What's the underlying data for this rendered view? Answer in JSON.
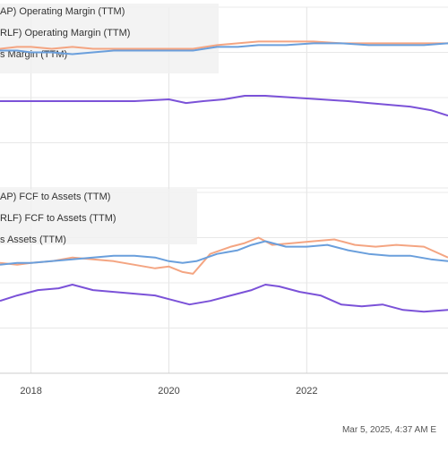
{
  "chart_data": {
    "type": "line",
    "xlim": [
      2017.55,
      2024.05
    ],
    "x_ticks": [
      {
        "value": 2018,
        "label": "2018"
      },
      {
        "value": 2020,
        "label": "2020"
      },
      {
        "value": 2022,
        "label": "2022"
      }
    ],
    "footer_text": "Mar 5, 2025, 4:37 AM E",
    "panels": [
      {
        "name": "top",
        "ylim": [
          0,
          1
        ],
        "legend": [
          {
            "text": "AP) Operating Margin (TTM)",
            "color": "#f4a582"
          },
          {
            "text": "RLF) Operating Margin (TTM)",
            "color": "#6a9fdc"
          },
          {
            "text": "s Margin (TTM)",
            "color": "#7b52d8"
          }
        ],
        "series": [
          {
            "color": "#f4a582",
            "points": [
              [
                2017.55,
                0.77
              ],
              [
                2017.8,
                0.78
              ],
              [
                2018.0,
                0.78
              ],
              [
                2018.3,
                0.77
              ],
              [
                2018.6,
                0.78
              ],
              [
                2018.9,
                0.77
              ],
              [
                2019.2,
                0.77
              ],
              [
                2019.6,
                0.77
              ],
              [
                2020.0,
                0.77
              ],
              [
                2020.35,
                0.77
              ],
              [
                2020.7,
                0.79
              ],
              [
                2021.0,
                0.8
              ],
              [
                2021.3,
                0.81
              ],
              [
                2021.7,
                0.81
              ],
              [
                2022.1,
                0.81
              ],
              [
                2022.5,
                0.8
              ],
              [
                2022.9,
                0.8
              ],
              [
                2023.3,
                0.8
              ],
              [
                2023.7,
                0.8
              ],
              [
                2024.05,
                0.8
              ]
            ]
          },
          {
            "color": "#6a9fdc",
            "points": [
              [
                2017.55,
                0.76
              ],
              [
                2017.8,
                0.76
              ],
              [
                2018.0,
                0.75
              ],
              [
                2018.3,
                0.75
              ],
              [
                2018.6,
                0.74
              ],
              [
                2018.9,
                0.75
              ],
              [
                2019.2,
                0.76
              ],
              [
                2019.6,
                0.76
              ],
              [
                2020.0,
                0.76
              ],
              [
                2020.35,
                0.76
              ],
              [
                2020.7,
                0.78
              ],
              [
                2021.0,
                0.78
              ],
              [
                2021.3,
                0.79
              ],
              [
                2021.7,
                0.79
              ],
              [
                2022.1,
                0.8
              ],
              [
                2022.5,
                0.8
              ],
              [
                2022.9,
                0.79
              ],
              [
                2023.3,
                0.79
              ],
              [
                2023.7,
                0.79
              ],
              [
                2024.05,
                0.8
              ]
            ]
          },
          {
            "color": "#7b52d8",
            "points": [
              [
                2017.55,
                0.48
              ],
              [
                2017.8,
                0.48
              ],
              [
                2018.0,
                0.48
              ],
              [
                2018.5,
                0.48
              ],
              [
                2019.0,
                0.48
              ],
              [
                2019.5,
                0.48
              ],
              [
                2020.0,
                0.49
              ],
              [
                2020.25,
                0.47
              ],
              [
                2020.5,
                0.48
              ],
              [
                2020.8,
                0.49
              ],
              [
                2021.1,
                0.51
              ],
              [
                2021.4,
                0.51
              ],
              [
                2021.8,
                0.5
              ],
              [
                2022.2,
                0.49
              ],
              [
                2022.6,
                0.48
              ],
              [
                2022.9,
                0.47
              ],
              [
                2023.2,
                0.46
              ],
              [
                2023.5,
                0.45
              ],
              [
                2023.8,
                0.43
              ],
              [
                2024.05,
                0.4
              ]
            ]
          }
        ]
      },
      {
        "name": "bottom",
        "ylim": [
          0,
          1
        ],
        "legend": [
          {
            "text": "AP) FCF to Assets (TTM)",
            "color": "#f4a582"
          },
          {
            "text": "RLF) FCF to Assets (TTM)",
            "color": "#6a9fdc"
          },
          {
            "text": "s Assets (TTM)",
            "color": "#7b52d8"
          }
        ],
        "series": [
          {
            "color": "#f4a582",
            "points": [
              [
                2017.55,
                0.61
              ],
              [
                2017.8,
                0.6
              ],
              [
                2018.0,
                0.61
              ],
              [
                2018.3,
                0.62
              ],
              [
                2018.6,
                0.64
              ],
              [
                2018.9,
                0.63
              ],
              [
                2019.2,
                0.62
              ],
              [
                2019.5,
                0.6
              ],
              [
                2019.8,
                0.58
              ],
              [
                2020.0,
                0.59
              ],
              [
                2020.2,
                0.56
              ],
              [
                2020.35,
                0.55
              ],
              [
                2020.6,
                0.66
              ],
              [
                2020.9,
                0.7
              ],
              [
                2021.1,
                0.72
              ],
              [
                2021.3,
                0.75
              ],
              [
                2021.5,
                0.71
              ],
              [
                2021.8,
                0.72
              ],
              [
                2022.1,
                0.73
              ],
              [
                2022.4,
                0.74
              ],
              [
                2022.7,
                0.71
              ],
              [
                2023.0,
                0.7
              ],
              [
                2023.3,
                0.71
              ],
              [
                2023.7,
                0.7
              ],
              [
                2024.05,
                0.64
              ]
            ]
          },
          {
            "color": "#6a9fdc",
            "points": [
              [
                2017.55,
                0.6
              ],
              [
                2017.8,
                0.61
              ],
              [
                2018.0,
                0.61
              ],
              [
                2018.3,
                0.62
              ],
              [
                2018.6,
                0.63
              ],
              [
                2018.9,
                0.64
              ],
              [
                2019.2,
                0.65
              ],
              [
                2019.5,
                0.65
              ],
              [
                2019.8,
                0.64
              ],
              [
                2020.0,
                0.62
              ],
              [
                2020.2,
                0.61
              ],
              [
                2020.4,
                0.62
              ],
              [
                2020.7,
                0.66
              ],
              [
                2021.0,
                0.68
              ],
              [
                2021.2,
                0.71
              ],
              [
                2021.4,
                0.73
              ],
              [
                2021.7,
                0.7
              ],
              [
                2022.0,
                0.7
              ],
              [
                2022.3,
                0.71
              ],
              [
                2022.6,
                0.68
              ],
              [
                2022.9,
                0.66
              ],
              [
                2023.2,
                0.65
              ],
              [
                2023.5,
                0.65
              ],
              [
                2023.8,
                0.63
              ],
              [
                2024.05,
                0.62
              ]
            ]
          },
          {
            "color": "#7b52d8",
            "points": [
              [
                2017.55,
                0.4
              ],
              [
                2017.8,
                0.43
              ],
              [
                2018.1,
                0.46
              ],
              [
                2018.4,
                0.47
              ],
              [
                2018.6,
                0.49
              ],
              [
                2018.9,
                0.46
              ],
              [
                2019.2,
                0.45
              ],
              [
                2019.5,
                0.44
              ],
              [
                2019.8,
                0.43
              ],
              [
                2020.0,
                0.41
              ],
              [
                2020.3,
                0.38
              ],
              [
                2020.6,
                0.4
              ],
              [
                2020.9,
                0.43
              ],
              [
                2021.2,
                0.46
              ],
              [
                2021.4,
                0.49
              ],
              [
                2021.6,
                0.48
              ],
              [
                2021.9,
                0.45
              ],
              [
                2022.2,
                0.43
              ],
              [
                2022.5,
                0.38
              ],
              [
                2022.8,
                0.37
              ],
              [
                2023.1,
                0.38
              ],
              [
                2023.4,
                0.35
              ],
              [
                2023.7,
                0.34
              ],
              [
                2024.05,
                0.35
              ]
            ]
          }
        ]
      }
    ]
  }
}
